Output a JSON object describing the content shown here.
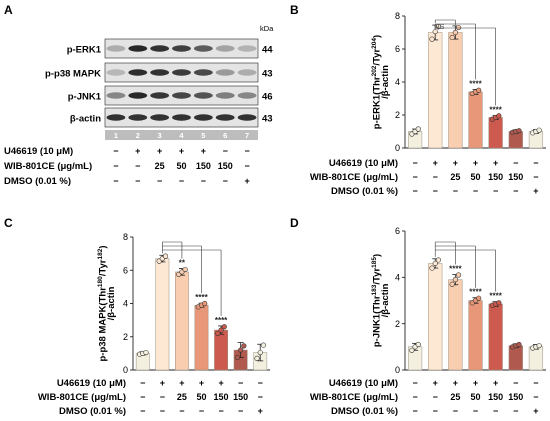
{
  "panel_a": {
    "panel_letter": "A",
    "kda_label": "kDa",
    "blots": [
      {
        "protein": "p-ERK1",
        "kda": "44",
        "intensities": [
          0.25,
          0.95,
          0.9,
          0.82,
          0.68,
          0.3,
          0.22
        ]
      },
      {
        "protein": "p-p38 MAPK",
        "kda": "43",
        "intensities": [
          0.2,
          0.92,
          0.9,
          0.85,
          0.78,
          0.35,
          0.25
        ]
      },
      {
        "protein": "p-JNK1",
        "kda": "46",
        "intensities": [
          0.45,
          0.95,
          0.88,
          0.8,
          0.72,
          0.5,
          0.45
        ]
      },
      {
        "protein": "β-actin",
        "kda": "43",
        "intensities": [
          0.9,
          0.9,
          0.9,
          0.9,
          0.9,
          0.9,
          0.9
        ]
      }
    ],
    "lane_numbers": [
      "1",
      "2",
      "3",
      "4",
      "5",
      "6",
      "7"
    ]
  },
  "conditions": [
    {
      "label": "U46619 (10 μM)",
      "marks": [
        "−",
        "+",
        "+",
        "+",
        "+",
        "−",
        "−"
      ]
    },
    {
      "label": "WIB-801CE (μg/mL)",
      "marks": [
        "−",
        "−",
        "25",
        "50",
        "150",
        "150",
        "−"
      ]
    },
    {
      "label": "DMSO (0.01 %)",
      "marks": [
        "−",
        "−",
        "−",
        "−",
        "−",
        "−",
        "+"
      ]
    }
  ],
  "colors": {
    "bars": [
      "#f3f0e0",
      "#fde8d4",
      "#f8cdb0",
      "#e89878",
      "#cc5a4e",
      "#b0594e",
      "#f3f0e0"
    ],
    "ns_color": "#555555"
  },
  "chart_data": [
    {
      "panel_letter": "B",
      "type": "bar",
      "categories": [
        "1",
        "2",
        "3",
        "4",
        "5",
        "6",
        "7"
      ],
      "values": [
        1.0,
        7.0,
        7.0,
        3.4,
        1.85,
        1.0,
        1.0
      ],
      "errors": [
        0.15,
        0.45,
        0.4,
        0.15,
        0.12,
        0.1,
        0.12
      ],
      "points": [
        [
          0.85,
          1.0,
          1.15
        ],
        [
          6.6,
          7.05,
          7.35
        ],
        [
          6.7,
          7.0,
          7.3
        ],
        [
          3.3,
          3.4,
          3.5
        ],
        [
          1.75,
          1.85,
          1.95
        ],
        [
          0.95,
          1.0,
          1.05
        ],
        [
          0.92,
          1.0,
          1.08
        ]
      ],
      "ylim": [
        0,
        8
      ],
      "yticks": [
        "0",
        "2",
        "4",
        "6",
        "8"
      ],
      "ylabel_parts": {
        "base": "p-ERK1(Thr",
        "sup1": "202",
        "mid": "/Tyr",
        "sup2": "204",
        "end": ")",
        "line2": "/β-actin"
      },
      "significance": [
        "",
        "",
        "NS",
        "****",
        "****",
        "",
        ""
      ]
    },
    {
      "panel_letter": "C",
      "type": "bar",
      "categories": [
        "1",
        "2",
        "3",
        "4",
        "5",
        "6",
        "7"
      ],
      "values": [
        1.0,
        6.7,
        5.9,
        3.9,
        2.4,
        1.2,
        1.05
      ],
      "errors": [
        0.1,
        0.2,
        0.2,
        0.12,
        0.25,
        0.45,
        0.5
      ],
      "points": [
        [
          0.95,
          1.0,
          1.05
        ],
        [
          6.55,
          6.7,
          6.85
        ],
        [
          5.75,
          5.9,
          6.05
        ],
        [
          3.8,
          3.9,
          4.0
        ],
        [
          2.2,
          2.4,
          2.6
        ],
        [
          0.75,
          1.2,
          1.45
        ],
        [
          0.7,
          1.05,
          1.5
        ]
      ],
      "ylim": [
        0,
        8
      ],
      "yticks": [
        "0",
        "2",
        "4",
        "6",
        "8"
      ],
      "ylabel_parts": {
        "base": "p-p38 MAPK(Thr",
        "sup1": "180",
        "mid": "/Tyr",
        "sup2": "182",
        "end": ")",
        "line2": "/β-actin"
      },
      "significance": [
        "",
        "",
        "**",
        "****",
        "****",
        "",
        ""
      ]
    },
    {
      "panel_letter": "D",
      "type": "bar",
      "categories": [
        "1",
        "2",
        "3",
        "4",
        "5",
        "6",
        "7"
      ],
      "values": [
        1.0,
        4.6,
        3.9,
        3.0,
        2.85,
        1.05,
        1.0
      ],
      "errors": [
        0.15,
        0.2,
        0.22,
        0.12,
        0.1,
        0.08,
        0.1
      ],
      "points": [
        [
          0.85,
          1.0,
          1.1
        ],
        [
          4.4,
          4.6,
          4.75
        ],
        [
          3.7,
          3.9,
          4.1
        ],
        [
          2.9,
          3.0,
          3.1
        ],
        [
          2.8,
          2.85,
          2.9
        ],
        [
          1.0,
          1.05,
          1.1
        ],
        [
          0.95,
          1.0,
          1.05
        ]
      ],
      "ylim": [
        0,
        6
      ],
      "yticks": [
        "0",
        "2",
        "4",
        "6"
      ],
      "ylabel_parts": {
        "base": "p-JNK1(Thr",
        "sup1": "183",
        "mid": "/Tyr",
        "sup2": "185",
        "end": ")",
        "line2": "/β-actin"
      },
      "significance": [
        "",
        "",
        "****",
        "****",
        "****",
        "",
        ""
      ]
    }
  ]
}
